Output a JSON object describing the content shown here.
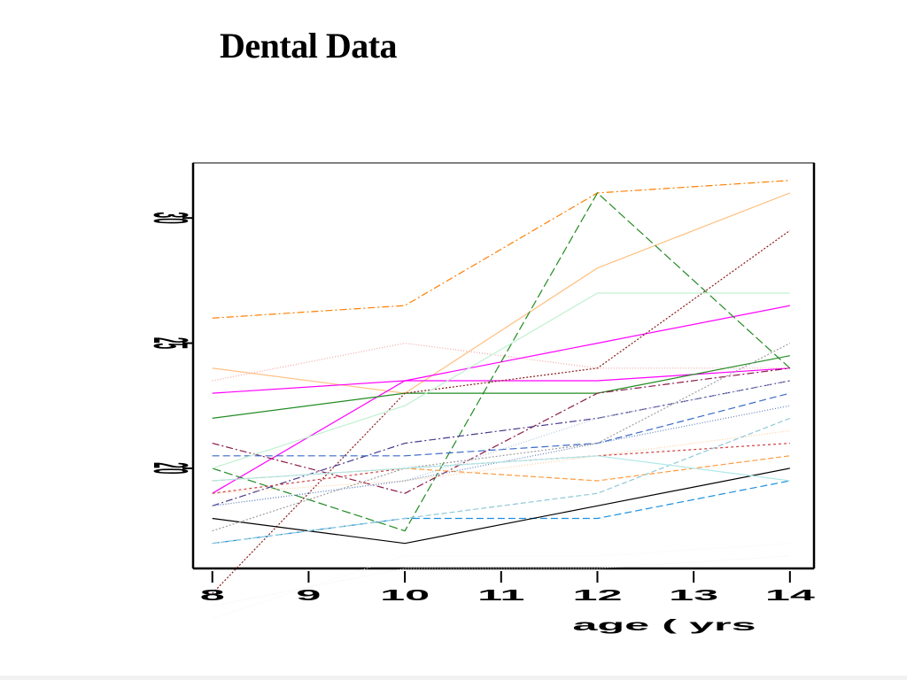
{
  "chart_data": {
    "type": "line",
    "title": "Dental Data",
    "xlabel": "age ( yrs",
    "ylabel": "",
    "x_tick_labels": [
      "8",
      "9",
      "10",
      "11",
      "12",
      "13",
      "14"
    ],
    "y_tick_labels": [
      "20",
      "25",
      "30"
    ],
    "x": [
      8,
      10,
      12,
      14
    ],
    "xlim": [
      7.8,
      14.25
    ],
    "ylim": [
      16,
      32.2
    ],
    "grid": false,
    "legend": "none",
    "series": [
      {
        "color": "#ff7f00",
        "dash": "8,3,2,3",
        "values": [
          26.0,
          26.5,
          31.0,
          31.5
        ]
      },
      {
        "color": "#ffc080",
        "dash": "none",
        "values": [
          24.0,
          23.0,
          28.0,
          31.0
        ]
      },
      {
        "color": "#f4a3a3",
        "dash": "1,2",
        "values": [
          23.5,
          25.0,
          24.0,
          24.0
        ]
      },
      {
        "color": "#ff00ff",
        "dash": "none",
        "values": [
          23.0,
          23.5,
          23.5,
          24.0
        ]
      },
      {
        "color": "#ff00ff",
        "dash": "none",
        "values": [
          19.0,
          23.5,
          25.0,
          26.5
        ]
      },
      {
        "color": "#228b22",
        "dash": "none",
        "values": [
          22.0,
          23.0,
          23.0,
          24.5
        ]
      },
      {
        "color": "#228b22",
        "dash": "10,4",
        "values": [
          20.0,
          17.5,
          31.0,
          24.0
        ]
      },
      {
        "color": "#8b1a1a",
        "dash": "2,2",
        "values": [
          15.0,
          23.0,
          24.0,
          29.5
        ]
      },
      {
        "color": "#8b1a4a",
        "dash": "8,3,2,3",
        "values": [
          21.0,
          19.0,
          23.0,
          24.0
        ]
      },
      {
        "color": "#4a3a8b",
        "dash": "8,3,2,3",
        "values": [
          18.5,
          21.0,
          22.0,
          23.5
        ]
      },
      {
        "color": "#3a6ac8",
        "dash": "8,4",
        "values": [
          20.5,
          20.5,
          21.0,
          23.0
        ]
      },
      {
        "color": "#1a90e0",
        "dash": "8,4",
        "values": [
          17.0,
          18.0,
          18.0,
          19.5
        ]
      },
      {
        "color": "#000000",
        "dash": "none",
        "values": [
          18.0,
          17.0,
          18.5,
          20.0
        ]
      },
      {
        "color": "#ff9a40",
        "dash": "6,3",
        "values": [
          19.5,
          20.0,
          19.5,
          20.5
        ]
      },
      {
        "color": "#ffd0a0",
        "dash": "1,2",
        "values": [
          19.0,
          19.5,
          20.5,
          21.5
        ]
      },
      {
        "color": "#d04040",
        "dash": "3,3",
        "values": [
          19.0,
          20.0,
          20.5,
          21.0
        ]
      },
      {
        "color": "#b0c4de",
        "dash": "1,2",
        "values": [
          18.5,
          19.5,
          22.0,
          23.5
        ]
      },
      {
        "color": "#6080c0",
        "dash": "1,2",
        "values": [
          18.5,
          19.5,
          21.0,
          22.5
        ]
      },
      {
        "color": "#a0a0a0",
        "dash": "2,2",
        "values": [
          17.5,
          20.0,
          21.0,
          25.0
        ]
      },
      {
        "color": "#90c8d8",
        "dash": "6,3",
        "values": [
          17.0,
          18.0,
          19.0,
          22.0
        ]
      },
      {
        "color": "#b0e8e8",
        "dash": "none",
        "values": [
          19.5,
          20.0,
          20.5,
          19.5
        ]
      },
      {
        "color": "#c0f0d0",
        "dash": "none",
        "values": [
          20.0,
          22.5,
          27.0,
          27.0
        ]
      },
      {
        "color": "#fff0f0",
        "dash": "1,2",
        "values": [
          14.0,
          16.5,
          16.5,
          17.0
        ]
      },
      {
        "color": "#f0f0f0",
        "dash": "1,2",
        "values": [
          14.5,
          16.0,
          16.0,
          16.5
        ]
      }
    ]
  }
}
